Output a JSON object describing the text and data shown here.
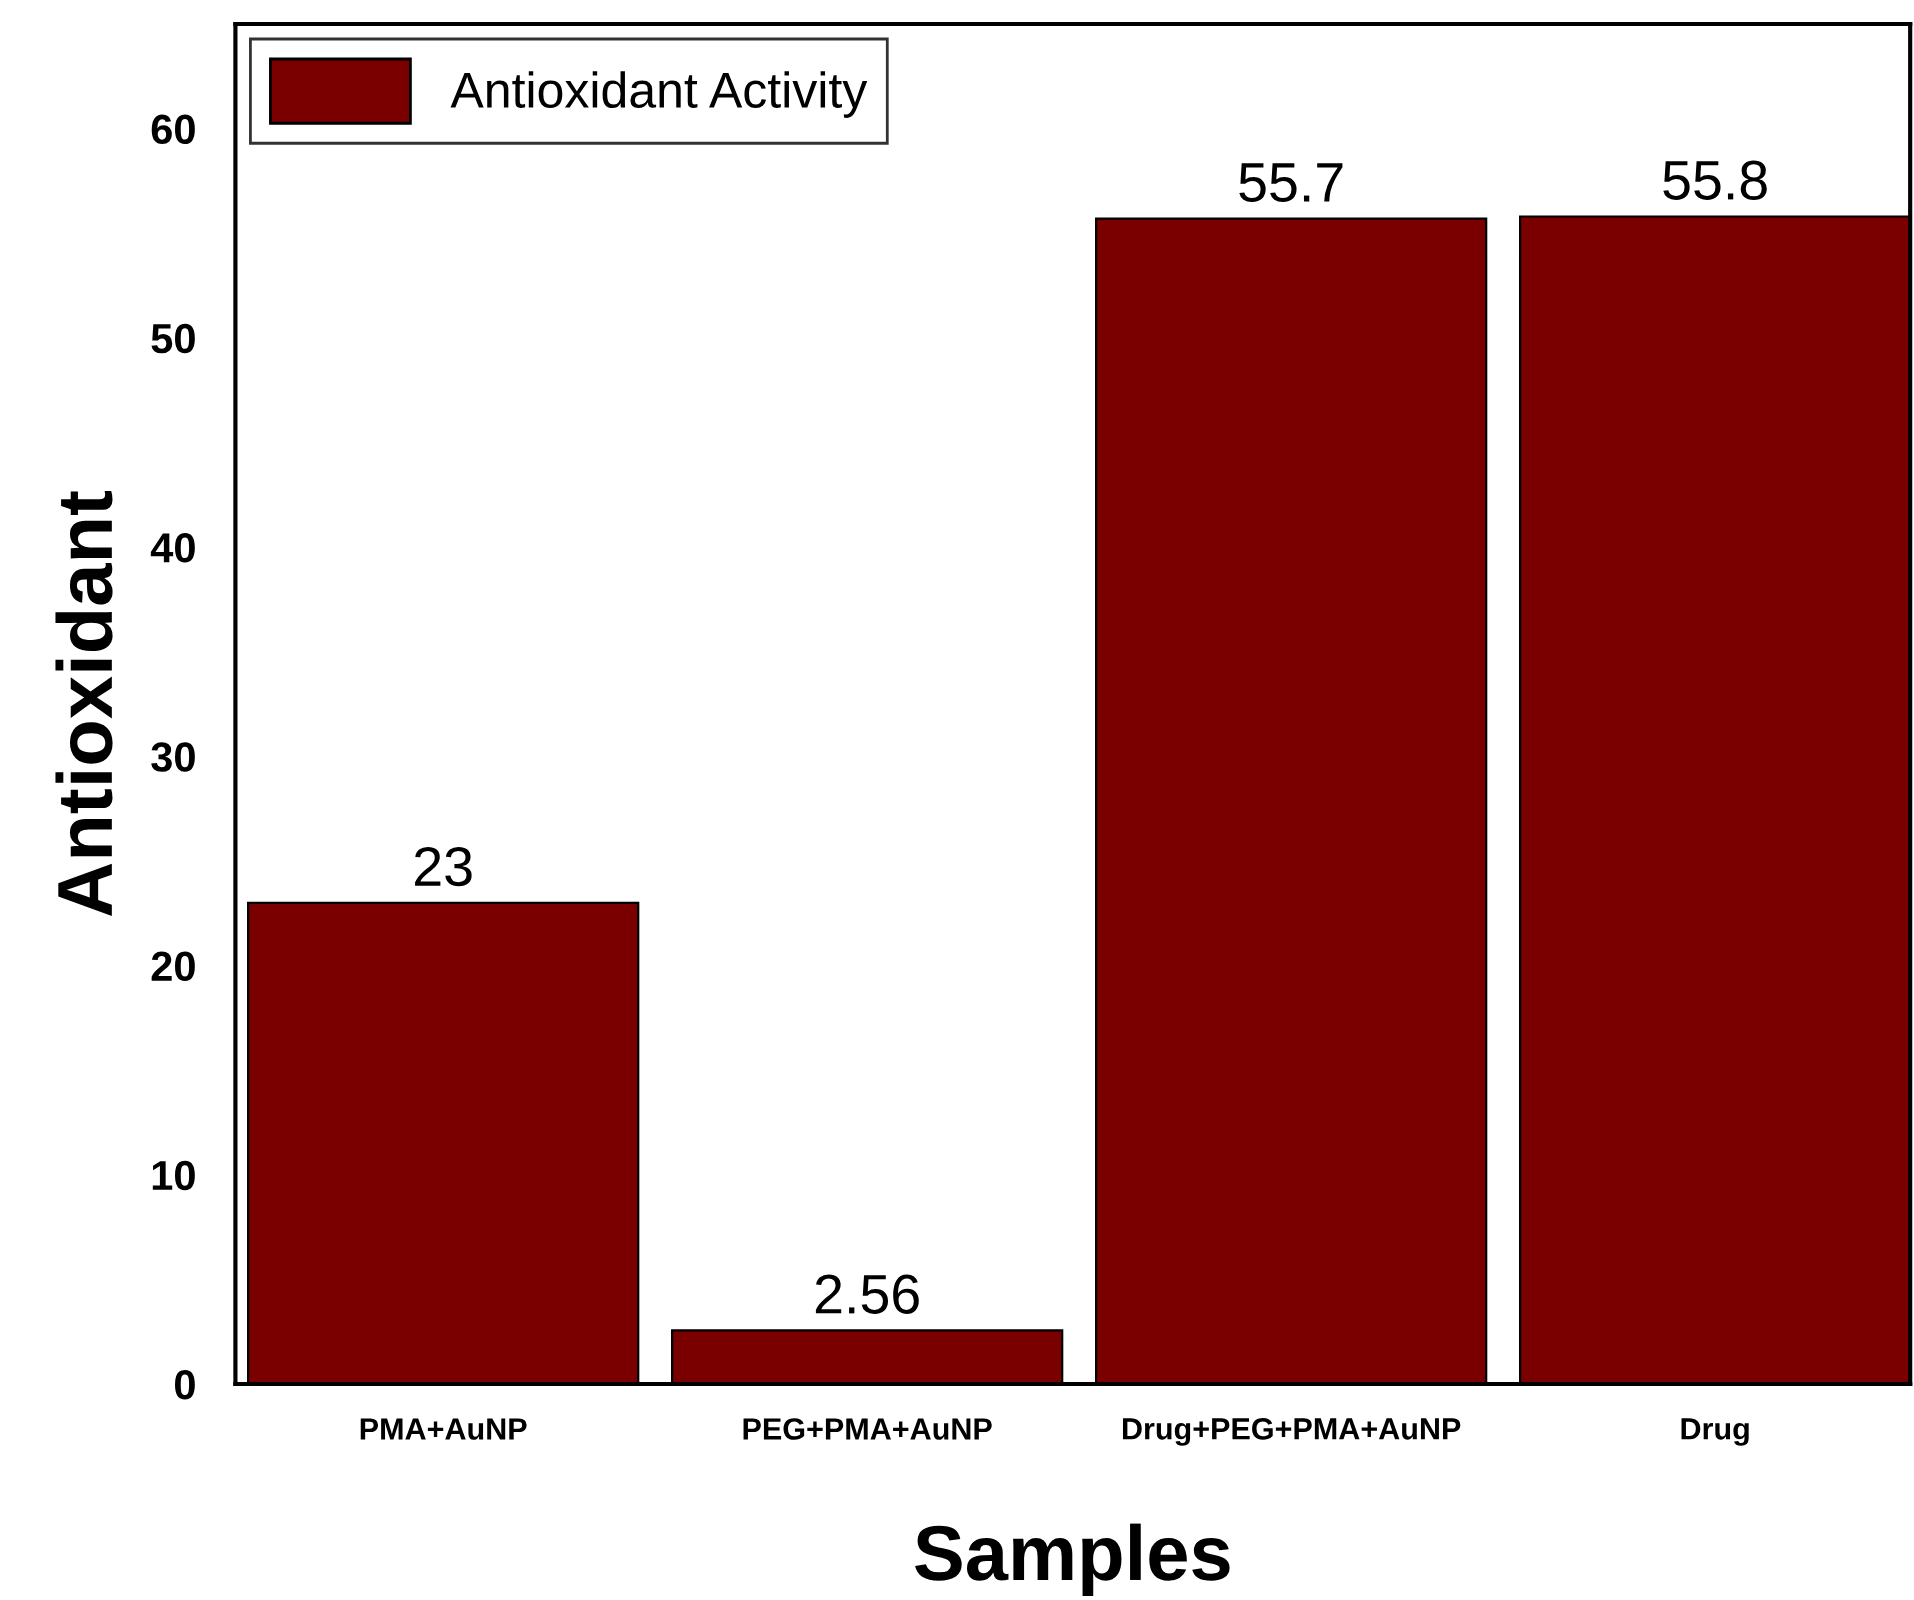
{
  "chart_data": {
    "type": "bar",
    "xlabel": "Samples",
    "ylabel": "Antioxidant",
    "categories": [
      "PMA+AuNP",
      "PEG+PMA+AuNP",
      "Drug+PEG+PMA+AuNP",
      "Drug"
    ],
    "series": [
      {
        "name": "Antioxidant Activity",
        "color": "#7a0000",
        "values": [
          23,
          2.56,
          55.7,
          55.8
        ]
      }
    ],
    "data_labels": true,
    "ylim": [
      0,
      65
    ],
    "yticks": [
      0,
      10,
      20,
      30,
      40,
      50,
      60
    ],
    "grid": false,
    "legend": "top left"
  }
}
